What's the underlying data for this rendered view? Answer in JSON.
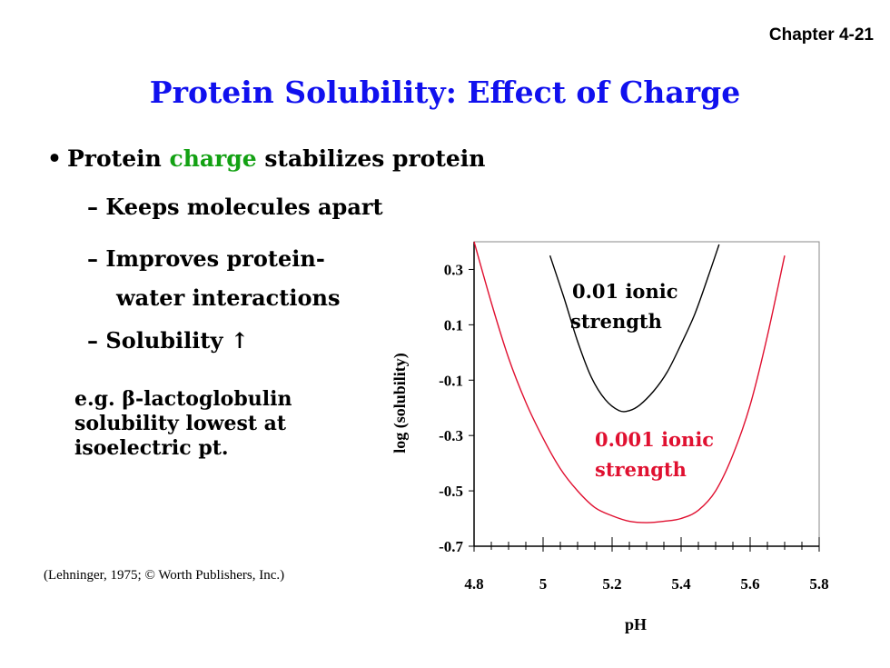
{
  "slide": {
    "chapter_label": "Chapter 4-21",
    "title": "Protein Solubility:  Effect of Charge",
    "bullet_prefix": "Protein ",
    "bullet_highlight": "charge",
    "bullet_suffix": " stabilizes protein",
    "highlight_color": "#13a113",
    "title_color": "#1010ee",
    "sub1": "– Keeps molecules apart",
    "sub2_line1": "– Improves protein-",
    "sub2_line2": "water interactions",
    "sub3": "– Solubility ↑",
    "note_line1": "e.g. β-lactoglobulin",
    "note_line2": "solubility lowest at",
    "note_line3": "isoelectric pt.",
    "citation": "(Lehninger,  1975; © Worth Publishers, Inc.)"
  },
  "chart_data": {
    "type": "line",
    "xlabel": "pH",
    "ylabel": "log (solubility)",
    "xlim": [
      4.8,
      5.8
    ],
    "ylim": [
      -0.7,
      0.4
    ],
    "x_ticks": [
      "4.8",
      "5",
      "5.2",
      "5.4",
      "5.6",
      "5.8"
    ],
    "y_ticks": [
      "0.3",
      "0.1",
      "-0.1",
      "-0.3",
      "-0.5",
      "-0.7"
    ],
    "series": [
      {
        "name": "0.01 ionic strength",
        "color": "#000000",
        "x": [
          5.02,
          5.06,
          5.1,
          5.14,
          5.18,
          5.22,
          5.25,
          5.28,
          5.32,
          5.36,
          5.4,
          5.44,
          5.48,
          5.51
        ],
        "y": [
          0.35,
          0.2,
          0.04,
          -0.09,
          -0.17,
          -0.21,
          -0.21,
          -0.19,
          -0.14,
          -0.07,
          0.03,
          0.14,
          0.28,
          0.39
        ]
      },
      {
        "name": "0.001 ionic strength",
        "color": "#e01030",
        "x": [
          4.8,
          4.85,
          4.9,
          4.95,
          5.0,
          5.05,
          5.1,
          5.15,
          5.2,
          5.25,
          5.3,
          5.35,
          5.4,
          5.45,
          5.5,
          5.55,
          5.6,
          5.65,
          5.7
        ],
        "y": [
          0.4,
          0.18,
          -0.02,
          -0.18,
          -0.31,
          -0.42,
          -0.5,
          -0.56,
          -0.59,
          -0.61,
          -0.615,
          -0.61,
          -0.6,
          -0.57,
          -0.5,
          -0.37,
          -0.19,
          0.06,
          0.35
        ]
      }
    ],
    "annotations": [
      {
        "line1": "0.01 ionic",
        "line2": "strength",
        "color": "#000000"
      },
      {
        "line1": "0.001 ionic",
        "line2": "strength",
        "color": "#e01030"
      }
    ],
    "grid": false,
    "legend": "none"
  }
}
